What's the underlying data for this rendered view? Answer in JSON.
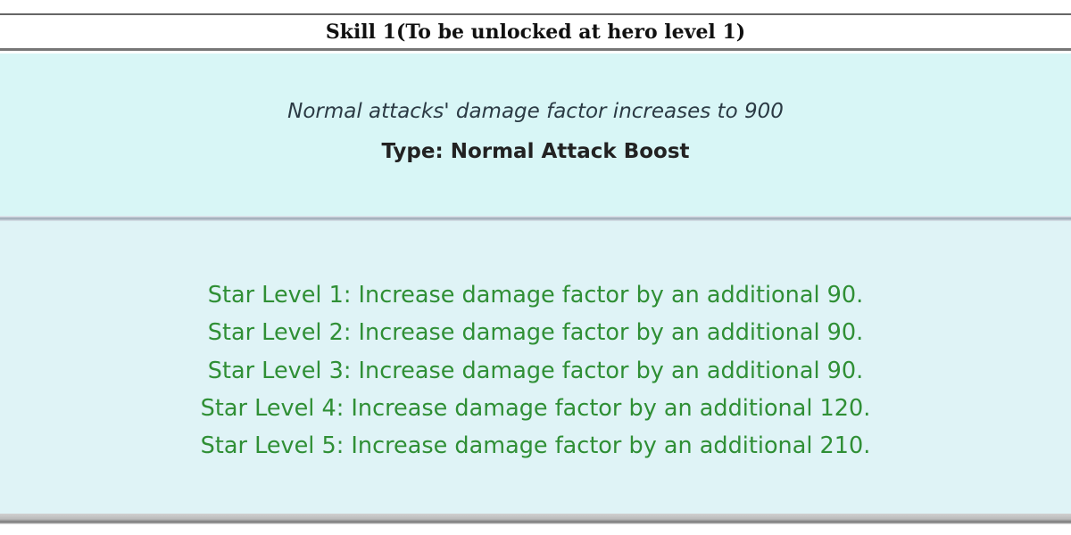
{
  "header": {
    "title": "Skill 1(To be unlocked at hero level 1)"
  },
  "skill": {
    "description": "Normal attacks' damage factor increases to 900",
    "type": "Type: Normal Attack Boost"
  },
  "star_levels": [
    "Star Level 1: Increase damage factor by an additional 90.",
    "Star Level 2: Increase damage factor by an additional 90.",
    "Star Level 3: Increase damage factor by an additional 90.",
    "Star Level 4: Increase damage factor by an additional 120.",
    "Star Level 5: Increase damage factor by an additional 210."
  ],
  "colors": {
    "panel_bg": "#d8f6f6",
    "star_text": "#2f8f35"
  }
}
